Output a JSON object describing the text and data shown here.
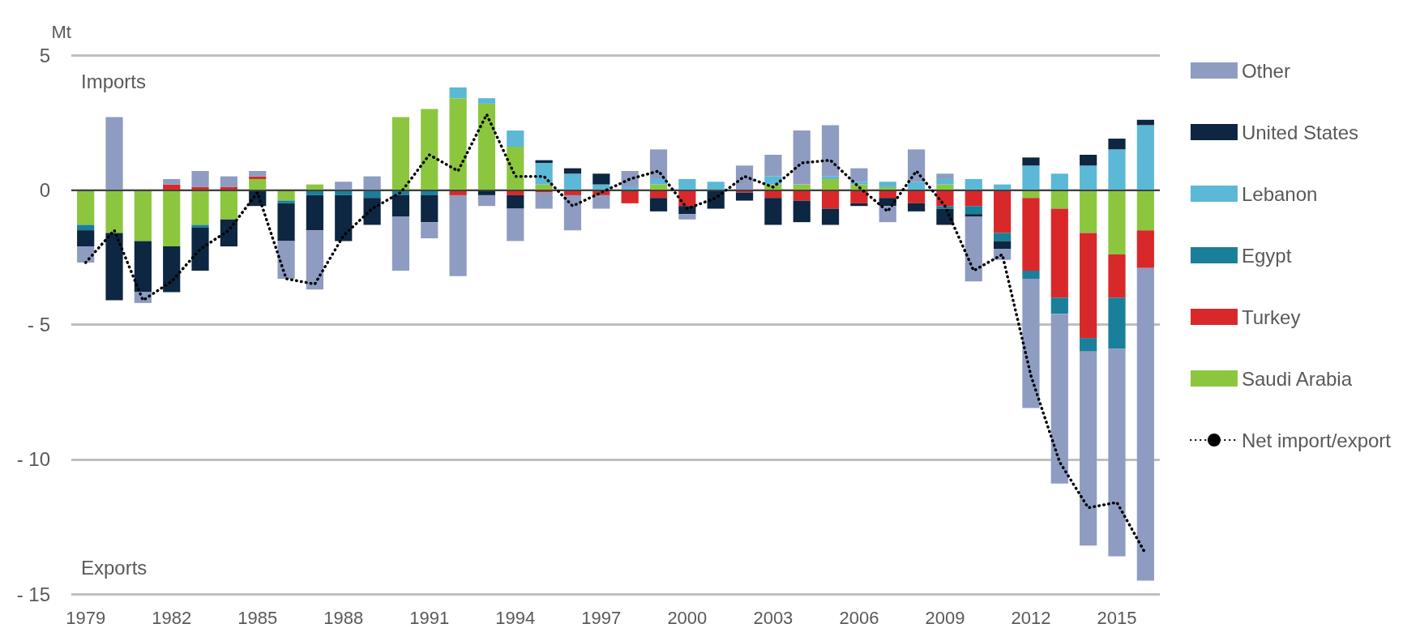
{
  "chart_data": {
    "type": "bar",
    "stacked": true,
    "ylabel": "Mt",
    "annotations": [
      "Imports",
      "Exports"
    ],
    "categories": [
      "1979",
      null,
      null,
      "1982",
      null,
      null,
      "1985",
      null,
      null,
      "1988",
      null,
      null,
      "1991",
      null,
      null,
      "1994",
      null,
      null,
      "1997",
      null,
      null,
      "2000",
      null,
      null,
      "2003",
      null,
      null,
      "2006",
      null,
      null,
      "2009",
      null,
      null,
      "2012",
      null,
      null,
      "2015",
      null
    ],
    "ylim": [
      -15,
      5
    ],
    "yticks": [
      {
        "value": -15,
        "label": "- 15"
      },
      {
        "value": -10,
        "label": "- 10"
      },
      {
        "value": -5,
        "label": "- 5"
      },
      0,
      5
    ],
    "grid": "y",
    "legend": "right",
    "series": [
      {
        "name": "Saudi Arabia",
        "color": "#8cc63f",
        "values": [
          -1.3,
          -1.6,
          -1.9,
          -2.1,
          -1.3,
          -1.1,
          0.4,
          -0.4,
          0.2,
          null,
          null,
          2.7,
          3.0,
          3.4,
          3.2,
          1.6,
          0.2,
          null,
          null,
          null,
          0.2,
          null,
          null,
          null,
          0.2,
          0.2,
          0.4,
          0.2,
          0.1,
          null,
          0.2,
          null,
          null,
          -0.3,
          -0.7,
          -1.6,
          -2.4,
          -1.5
        ]
      },
      {
        "name": "Turkey",
        "color": "#d9282a",
        "values": [
          null,
          null,
          null,
          0.2,
          0.1,
          0.1,
          0.1,
          null,
          null,
          null,
          null,
          null,
          null,
          -0.2,
          null,
          -0.2,
          -0.1,
          -0.2,
          -0.2,
          -0.5,
          -0.3,
          -0.6,
          null,
          -0.1,
          -0.3,
          -0.4,
          -0.7,
          -0.5,
          -0.3,
          -0.5,
          -0.6,
          -0.6,
          -1.6,
          -2.7,
          -3.3,
          -3.9,
          -1.6,
          -1.4
        ]
      },
      {
        "name": "Egypt",
        "color": "#1a7f9a",
        "values": [
          -0.2,
          null,
          null,
          null,
          -0.1,
          null,
          null,
          -0.1,
          -0.2,
          -0.2,
          -0.3,
          -0.2,
          -0.2,
          null,
          null,
          null,
          null,
          null,
          null,
          null,
          null,
          null,
          null,
          null,
          null,
          null,
          null,
          null,
          null,
          null,
          -0.1,
          -0.3,
          -0.3,
          -0.3,
          -0.6,
          -0.5,
          -1.9,
          null
        ]
      },
      {
        "name": "Lebanon",
        "color": "#5bb8d6",
        "values": [
          null,
          null,
          null,
          null,
          null,
          null,
          null,
          null,
          null,
          null,
          null,
          null,
          null,
          0.4,
          0.2,
          0.6,
          0.8,
          0.6,
          0.2,
          0.1,
          0.2,
          0.4,
          0.3,
          null,
          0.3,
          null,
          0.1,
          0.1,
          0.2,
          0.3,
          0.2,
          0.4,
          0.2,
          0.9,
          0.6,
          0.9,
          1.5,
          2.4
        ]
      },
      {
        "name": "United States",
        "color": "#0d2641",
        "values": [
          -0.6,
          -2.5,
          -1.9,
          -1.7,
          -1.6,
          -1.0,
          -0.6,
          -1.4,
          -1.3,
          -1.7,
          -1.0,
          -0.8,
          -1.0,
          null,
          -0.2,
          -0.5,
          0.1,
          0.2,
          0.4,
          null,
          -0.5,
          -0.3,
          -0.7,
          -0.3,
          -1.0,
          -0.8,
          -0.6,
          -0.1,
          -0.3,
          -0.3,
          -0.6,
          -0.1,
          -0.3,
          0.3,
          null,
          0.4,
          0.4,
          0.2
        ]
      },
      {
        "name": "Other",
        "color": "#8e9cc2",
        "values": [
          -0.6,
          2.7,
          -0.4,
          0.2,
          0.6,
          0.4,
          0.2,
          -1.4,
          -2.2,
          0.3,
          0.5,
          -2.0,
          -0.6,
          -3.0,
          -0.4,
          -1.2,
          -0.6,
          -1.3,
          -0.5,
          0.6,
          1.1,
          -0.2,
          null,
          0.9,
          0.8,
          2.0,
          1.9,
          0.5,
          -0.6,
          1.2,
          0.2,
          -2.4,
          -0.4,
          -4.8,
          -6.3,
          -7.2,
          -7.7,
          -11.6
        ]
      },
      {
        "name": "Net import/export",
        "type": "line",
        "color": "#000000",
        "line_style": "dotted",
        "marker": "none",
        "values": [
          -2.7,
          -1.5,
          -4.1,
          -3.4,
          -2.2,
          -1.5,
          -0.1,
          -3.3,
          -3.5,
          -1.7,
          -0.7,
          -0.1,
          1.3,
          0.7,
          2.8,
          0.5,
          0.5,
          -0.6,
          -0.1,
          0.4,
          0.7,
          -0.7,
          -0.3,
          0.5,
          0.1,
          1.0,
          1.1,
          0.1,
          -0.8,
          0.7,
          -0.6,
          -3.0,
          -2.4,
          -6.9,
          -10.1,
          -11.8,
          -11.6,
          -13.5
        ]
      }
    ]
  }
}
